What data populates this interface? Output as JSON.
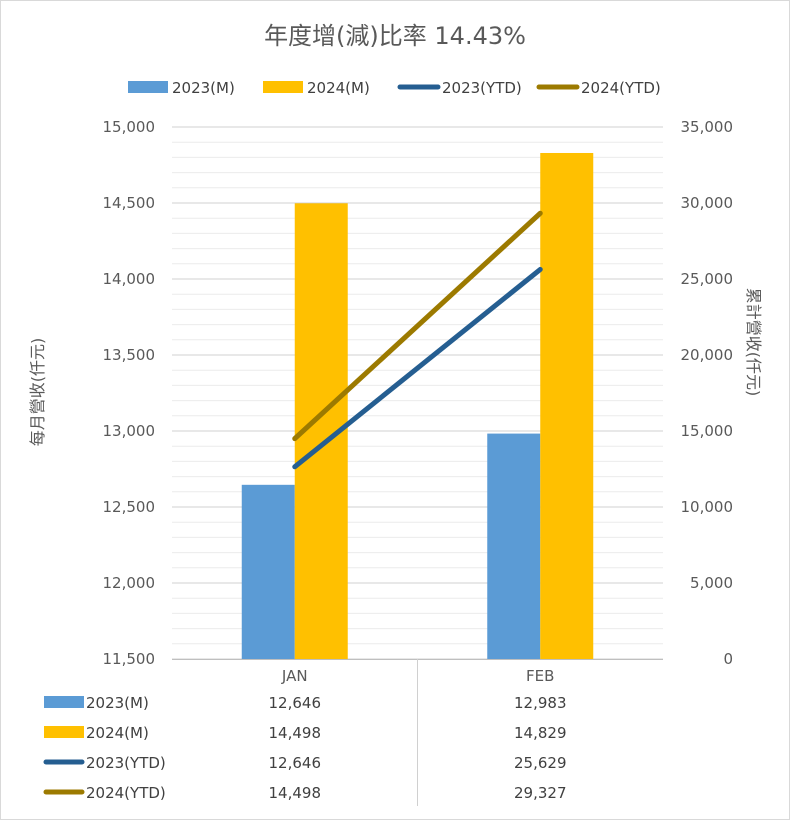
{
  "chart_data": {
    "type": "bar",
    "title": "年度增(減)比率 14.43%",
    "categories": [
      "JAN",
      "FEB"
    ],
    "series": [
      {
        "name": "2023(M)",
        "kind": "bar",
        "axis": "left",
        "color": "#5B9BD5",
        "values": [
          12646,
          12983
        ]
      },
      {
        "name": "2024(M)",
        "kind": "bar",
        "axis": "left",
        "color": "#FFC000",
        "values": [
          14498,
          14829
        ]
      },
      {
        "name": "2023(YTD)",
        "kind": "line",
        "axis": "right",
        "color": "#255E91",
        "values": [
          12646,
          25629
        ]
      },
      {
        "name": "2024(YTD)",
        "kind": "line",
        "axis": "right",
        "color": "#9C7A00",
        "values": [
          14498,
          29327
        ]
      }
    ],
    "ylabel_left": "每月營收(仟元)",
    "ylabel_right": "累計營收(仟元)",
    "ylim_left": [
      11500,
      15000
    ],
    "ylim_right": [
      0,
      35000
    ],
    "yticks_left": [
      "11,500",
      "12,000",
      "12,500",
      "13,000",
      "13,500",
      "14,000",
      "14,500",
      "15,000"
    ],
    "yticks_right": [
      "0",
      "5,000",
      "10,000",
      "15,000",
      "20,000",
      "25,000",
      "30,000",
      "35,000"
    ],
    "grid": true,
    "legend_position": "top",
    "data_table": true,
    "table_values": [
      [
        "12,646",
        "12,983"
      ],
      [
        "14,498",
        "14,829"
      ],
      [
        "12,646",
        "25,629"
      ],
      [
        "14,498",
        "29,327"
      ]
    ]
  }
}
